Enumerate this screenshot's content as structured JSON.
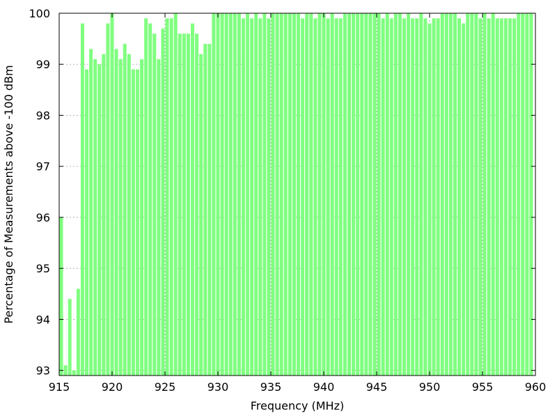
{
  "chart_data": {
    "type": "bar",
    "title": "",
    "xlabel": "Frequency (MHz)",
    "ylabel": "Percentage of Measurements above -100 dBm",
    "xlim": [
      915,
      960
    ],
    "ylim": [
      92.9,
      100
    ],
    "grid": true,
    "bar_width": 0.33,
    "bar_color": "#80ff80",
    "x_ticks": [
      915,
      920,
      925,
      930,
      935,
      940,
      945,
      950,
      955,
      960
    ],
    "y_ticks": [
      93,
      94,
      95,
      96,
      97,
      98,
      99,
      100
    ],
    "series": [
      {
        "x": [
          915.2,
          915.6,
          916.0,
          916.4,
          916.8,
          917.2,
          917.6,
          918.0,
          918.4,
          918.8,
          919.2,
          919.6,
          920.0,
          920.4,
          920.8,
          921.2,
          921.6,
          922.0,
          922.4,
          922.8,
          923.2,
          923.6,
          924.0,
          924.4,
          924.8,
          925.2,
          925.6,
          926.0,
          926.4,
          926.8,
          927.2,
          927.6,
          928.0,
          928.4,
          928.8,
          929.2,
          929.6,
          930.0,
          930.4,
          930.8,
          931.2,
          931.6,
          932.0,
          932.4,
          932.8,
          933.2,
          933.6,
          934.0,
          934.4,
          934.8,
          935.2,
          935.6,
          936.0,
          936.4,
          936.8,
          937.2,
          937.6,
          938.0,
          938.4,
          938.8,
          939.2,
          939.6,
          940.0,
          940.4,
          940.8,
          941.2,
          941.6,
          942.0,
          942.4,
          942.8,
          943.2,
          943.6,
          944.0,
          944.4,
          944.8,
          945.2,
          945.6,
          946.0,
          946.4,
          946.8,
          947.2,
          947.6,
          948.0,
          948.4,
          948.8,
          949.2,
          949.6,
          950.0,
          950.4,
          950.8,
          951.2,
          951.6,
          952.0,
          952.4,
          952.8,
          953.2,
          953.6,
          954.0,
          954.4,
          954.8,
          955.2,
          955.6,
          956.0,
          956.4,
          956.8,
          957.2,
          957.6,
          958.0,
          958.4,
          958.8,
          959.2,
          959.6
        ],
        "values": [
          96.0,
          93.1,
          94.4,
          93.0,
          94.6,
          99.8,
          98.9,
          99.3,
          99.1,
          99.0,
          99.2,
          99.8,
          100.0,
          99.3,
          99.1,
          99.4,
          99.2,
          98.9,
          98.9,
          99.1,
          99.9,
          99.8,
          99.6,
          99.1,
          99.7,
          99.9,
          99.9,
          100.0,
          99.6,
          99.6,
          99.6,
          99.8,
          99.6,
          99.2,
          99.4,
          99.4,
          100.0,
          100.0,
          100.0,
          100.0,
          100.0,
          100.0,
          100.0,
          99.9,
          100.0,
          99.9,
          100.0,
          99.9,
          100.0,
          99.9,
          100.0,
          100.0,
          100.0,
          100.0,
          100.0,
          100.0,
          100.0,
          99.9,
          100.0,
          100.0,
          99.9,
          100.0,
          100.0,
          99.9,
          100.0,
          99.9,
          99.9,
          100.0,
          100.0,
          100.0,
          100.0,
          100.0,
          100.0,
          100.0,
          100.0,
          100.0,
          99.9,
          100.0,
          99.9,
          100.0,
          100.0,
          99.9,
          100.0,
          99.9,
          99.9,
          100.0,
          99.9,
          99.8,
          99.9,
          99.9,
          100.0,
          100.0,
          100.0,
          100.0,
          99.9,
          99.8,
          100.0,
          100.0,
          100.0,
          99.9,
          100.0,
          99.9,
          100.0,
          99.9,
          99.9,
          99.9,
          99.9,
          99.9,
          100.0,
          100.0,
          100.0,
          100.0
        ]
      }
    ]
  }
}
